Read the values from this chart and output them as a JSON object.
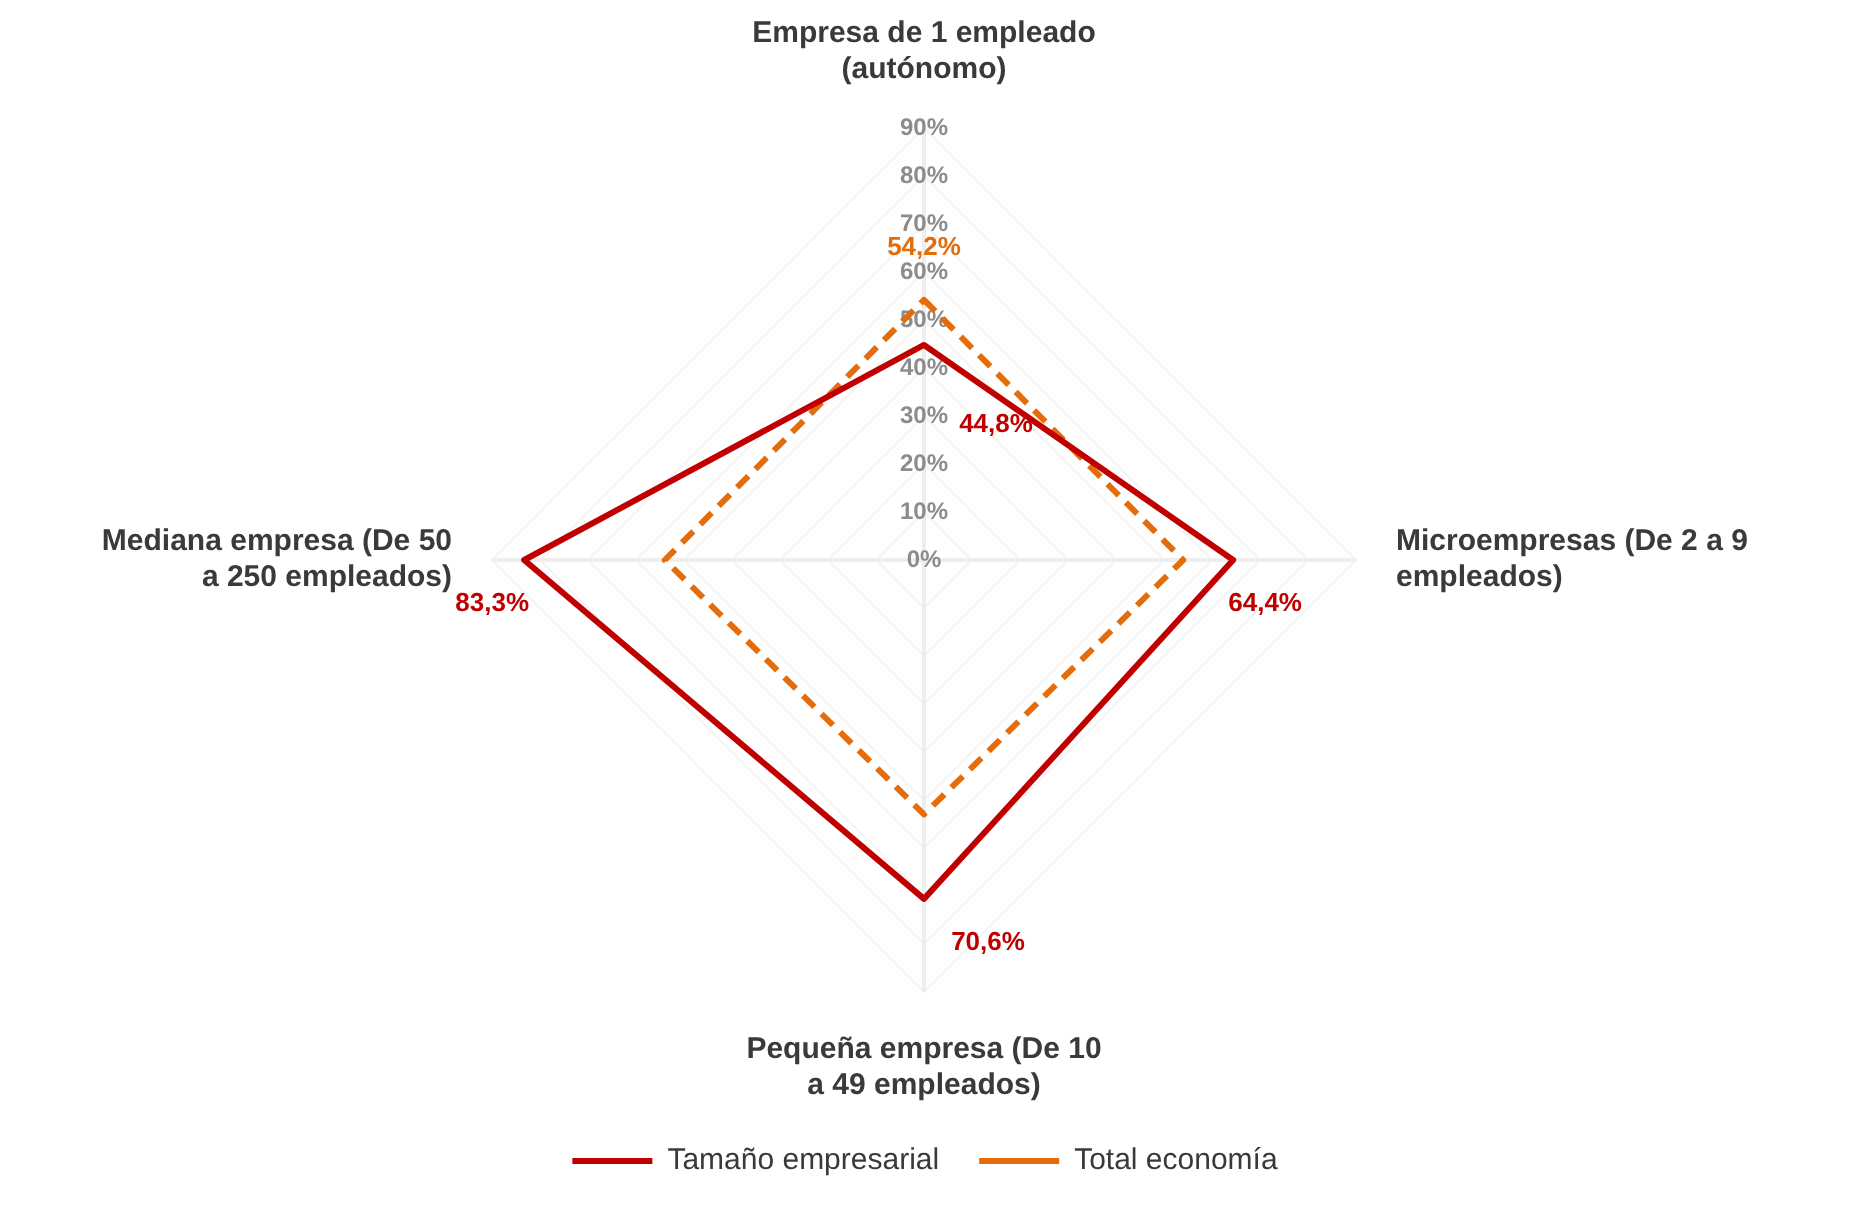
{
  "chart_data": {
    "type": "radar",
    "categories": [
      "Empresa de 1 empleado (autónomo)",
      "Microempresas (De 2 a 9 empleados)",
      "Pequeña empresa (De 10 a 49 empleados)",
      "Mediana empresa (De 50 a 250 empleados)"
    ],
    "series": [
      {
        "name": "Tamaño empresarial",
        "color": "#c00000",
        "values": [
          44.8,
          64.4,
          70.6,
          83.3
        ],
        "line_style": "solid",
        "value_labels": [
          "44,8%",
          "64,4%",
          "70,6%",
          "83,3%"
        ]
      },
      {
        "name": "Total economía",
        "color": "#e46c0a",
        "values": [
          54.2,
          54,
          53,
          54
        ],
        "line_style": "dashed",
        "value_labels": [
          "54,2%",
          null,
          null,
          null
        ]
      }
    ],
    "ylim": [
      0,
      90
    ],
    "yticks": [
      {
        "value": 0,
        "label": "0%"
      },
      {
        "value": 10,
        "label": "10%"
      },
      {
        "value": 20,
        "label": "20%"
      },
      {
        "value": 30,
        "label": "30%"
      },
      {
        "value": 40,
        "label": "40%"
      },
      {
        "value": 50,
        "label": "50%"
      },
      {
        "value": 60,
        "label": "60%"
      },
      {
        "value": 70,
        "label": "70%"
      },
      {
        "value": 80,
        "label": "80%"
      },
      {
        "value": 90,
        "label": "90%"
      }
    ],
    "grid": true,
    "legend": "bottom",
    "marker": "none"
  }
}
